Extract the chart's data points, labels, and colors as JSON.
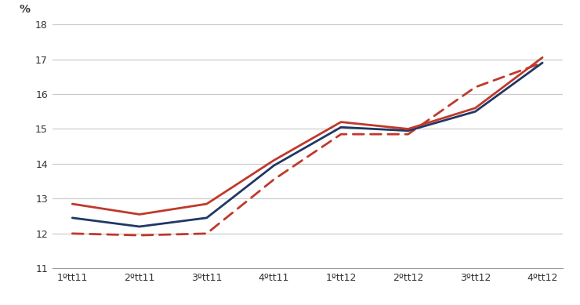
{
  "x_labels": [
    "1ºtt11",
    "2ºtt11",
    "3ºtt11",
    "4ºtt11",
    "1ºtt12",
    "2ºtt12",
    "3ºtt12",
    "4ºtt12"
  ],
  "line_blue_solid": {
    "values": [
      12.45,
      12.2,
      12.45,
      13.95,
      15.05,
      14.95,
      15.5,
      16.9
    ],
    "color": "#1f3864",
    "linestyle": "solid",
    "linewidth": 2.0
  },
  "line_red_solid": {
    "values": [
      12.85,
      12.55,
      12.85,
      14.1,
      15.2,
      15.0,
      15.6,
      17.05
    ],
    "color": "#c0392b",
    "linestyle": "solid",
    "linewidth": 2.0
  },
  "line_red_dashed": {
    "values": [
      12.0,
      11.95,
      12.0,
      13.55,
      14.85,
      14.85,
      16.2,
      16.9
    ],
    "color": "#c0392b",
    "linestyle": "dashed",
    "linewidth": 2.0
  },
  "ylim": [
    11,
    18
  ],
  "yticks": [
    11,
    12,
    13,
    14,
    15,
    16,
    17,
    18
  ],
  "ylabel": "%",
  "background_color": "#ffffff",
  "grid_color": "#c8c8c8",
  "top_stripe_color": "#aec8dc"
}
